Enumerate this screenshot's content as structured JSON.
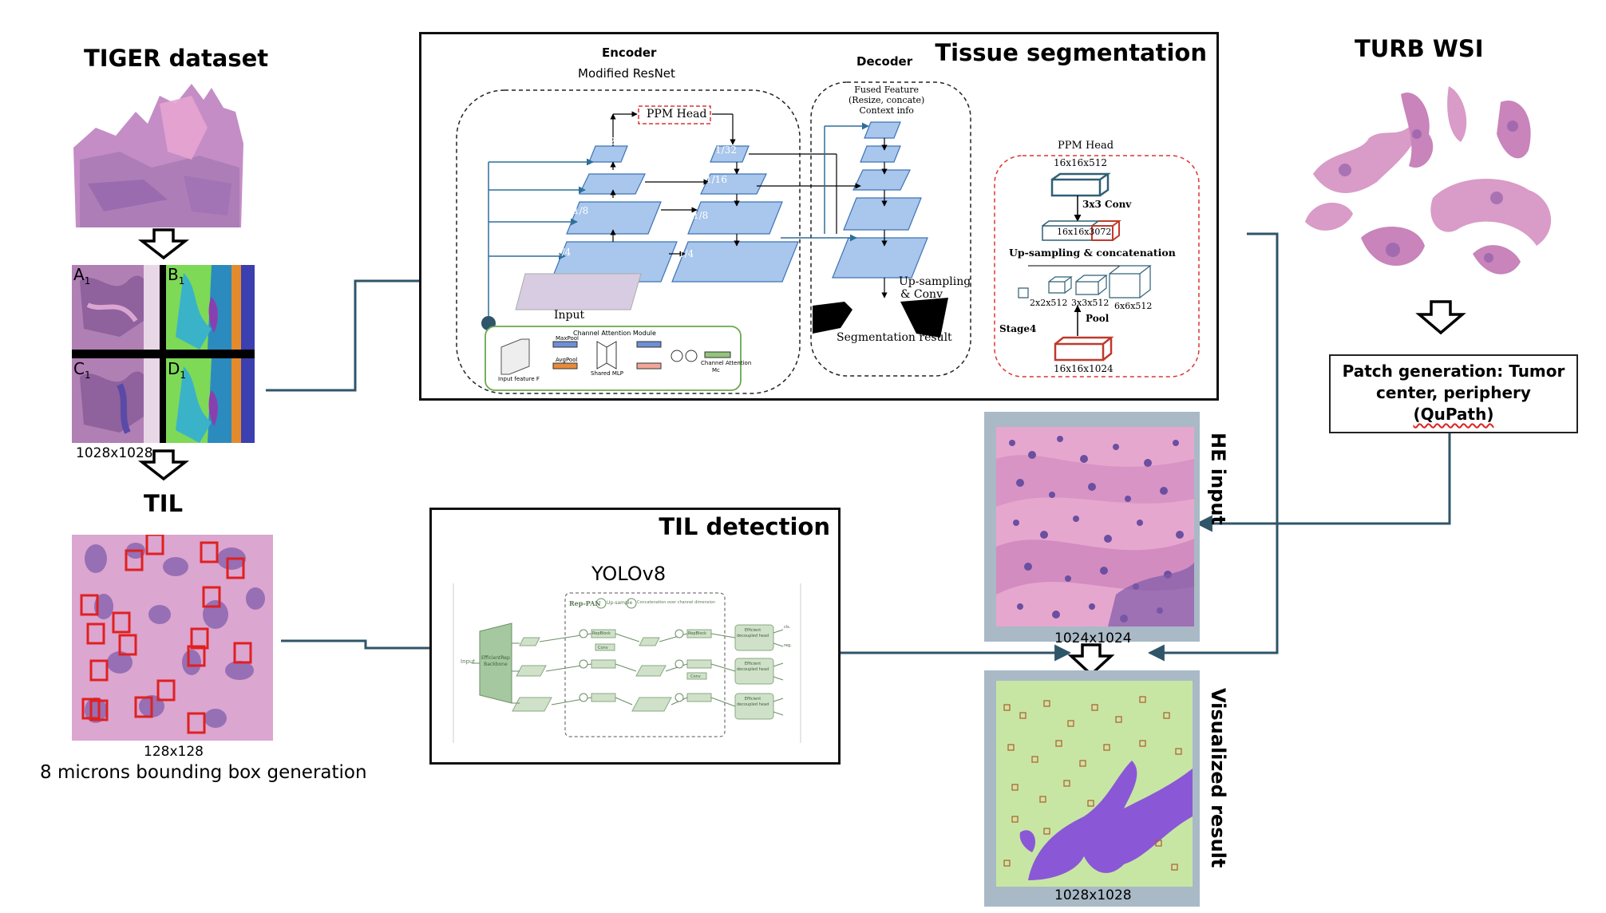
{
  "left": {
    "tiger_title": "TIGER dataset",
    "quad_labels": [
      "A1",
      "B1",
      "C1",
      "D1"
    ],
    "tiger_size": "1028x1028",
    "til_title": "TIL",
    "til_size": "128x128",
    "til_caption": "8 microns bounding box generation"
  },
  "tissue_segmentation": {
    "title": "Tissue segmentation",
    "encoder": "Encoder",
    "encoder_sub": "Modified ResNet",
    "decoder": "Decoder",
    "ppm_head_box": "PPM Head",
    "scales": [
      "1/32",
      "1/16",
      "1/8",
      "1/4"
    ],
    "input": "Input",
    "fused": [
      "Fused Feature",
      "(Resize, concate)",
      "Context info"
    ],
    "upsampling": [
      "Up-sampling",
      "& Conv"
    ],
    "seg_result": "Segmentation result",
    "cam_title": "Channel Attention Module",
    "cam_maxpool": "MaxPool",
    "cam_avgpool": "AvgPool",
    "cam_mlp": "Shared MLP",
    "cam_input": "Input feature F",
    "cam_out": "Channel Attention",
    "cam_out2": "Mc",
    "ppm": {
      "title": "PPM Head",
      "top": "16x16x512",
      "conv": "3x3 Conv",
      "mid": "16x16x3072",
      "upcat": "Up-sampling & concatenation",
      "s1": "2x2x512",
      "s2": "3x3x512",
      "s3": "6x6x512",
      "pool": "Pool",
      "stage": "Stage4",
      "bottom": "16x16x1024"
    }
  },
  "turb": {
    "title": "TURB WSI",
    "patch_line1": "Patch generation: Tumor",
    "patch_line2": "center, periphery",
    "patch_line3": "(QuPath)"
  },
  "right_col": {
    "he_input": "HE input",
    "he_size": "1024x1024",
    "vis": "Visualized result",
    "vis_size": "1028x1028"
  },
  "til_detection": {
    "title": "TIL detection",
    "model": "YOLOv8",
    "rep_pan": "Rep-PAN",
    "legend_u": "Up-sample",
    "legend_c": "Concatenation over channel dimension",
    "input": "Input",
    "backbone": [
      "EfficientRep",
      "Backbone"
    ],
    "repblock": "RepBlock",
    "conv": "Conv",
    "head": [
      "Efficient",
      "decoupled head"
    ],
    "cls": "cls.",
    "reg": "reg."
  },
  "colors": {
    "arrow": "#2f5569",
    "he_pink": "#d98bbd",
    "tissue_purple": "#8a5aa6",
    "feature_blue": "#a9c6ec",
    "ppm_red": "#c0392b",
    "ppm_teal": "#2f5f75",
    "til_green": "#a6c8a0",
    "gray_panel": "#a9b9c6"
  }
}
